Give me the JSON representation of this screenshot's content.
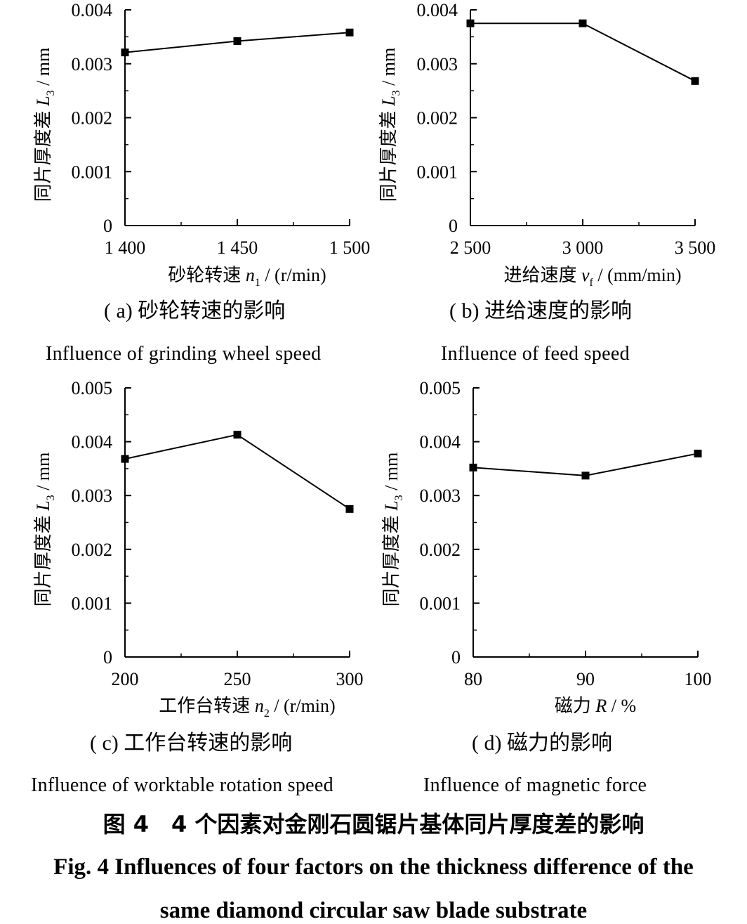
{
  "chart_data": [
    {
      "type": "line",
      "panel": "a",
      "x": [
        1400,
        1450,
        1500
      ],
      "x_tick_labels": [
        "1 400",
        "1 450",
        "1 500"
      ],
      "values": [
        0.00321,
        0.00342,
        0.00358
      ],
      "xlabel": {
        "text": "砂轮转速",
        "var": "n",
        "sub": "1",
        "unit": "/ (r/min)"
      },
      "ylabel": {
        "text": "同片厚度差",
        "var": "L",
        "sub": "3",
        "unit": "/ mm"
      },
      "ylim": [
        0,
        0.004
      ],
      "y_ticks": [
        "0",
        "0.001",
        "0.002",
        "0.003",
        "0.004"
      ],
      "caption_cn": "( a) 砂轮转速的影响",
      "caption_en": "Influence of grinding wheel speed"
    },
    {
      "type": "line",
      "panel": "b",
      "x": [
        2500,
        3000,
        3500
      ],
      "x_tick_labels": [
        "2 500",
        "3 000",
        "3 500"
      ],
      "values": [
        0.00375,
        0.00375,
        0.00268
      ],
      "xlabel": {
        "text": "进给速度",
        "var": "v",
        "sub": "f",
        "unit": "/ (mm/min)"
      },
      "ylabel": {
        "text": "同片厚度差",
        "var": "L",
        "sub": "3",
        "unit": "/ mm"
      },
      "ylim": [
        0,
        0.004
      ],
      "y_ticks": [
        "0",
        "0.001",
        "0.002",
        "0.003",
        "0.004"
      ],
      "caption_cn": "( b) 进给速度的影响",
      "caption_en": "Influence of feed speed"
    },
    {
      "type": "line",
      "panel": "c",
      "x": [
        200,
        250,
        300
      ],
      "x_tick_labels": [
        "200",
        "250",
        "300"
      ],
      "values": [
        0.00368,
        0.00413,
        0.00275
      ],
      "xlabel": {
        "text": "工作台转速",
        "var": "n",
        "sub": "2",
        "unit": "/ (r/min)"
      },
      "ylabel": {
        "text": "同片厚度差",
        "var": "L",
        "sub": "3",
        "unit": "/ mm"
      },
      "ylim": [
        0,
        0.005
      ],
      "y_ticks": [
        "0",
        "0.001",
        "0.002",
        "0.003",
        "0.004",
        "0.005"
      ],
      "caption_cn": "( c) 工作台转速的影响",
      "caption_en": "Influence of worktable rotation speed"
    },
    {
      "type": "line",
      "panel": "d",
      "x": [
        80,
        90,
        100
      ],
      "x_tick_labels": [
        "80",
        "90",
        "100"
      ],
      "values": [
        0.00352,
        0.00337,
        0.00378
      ],
      "xlabel": {
        "text": "磁力",
        "var": "R",
        "sub": "",
        "unit": "/ %"
      },
      "ylabel": {
        "text": "同片厚度差",
        "var": "L",
        "sub": "3",
        "unit": "/ mm"
      },
      "ylim": [
        0,
        0.005
      ],
      "y_ticks": [
        "0",
        "0.001",
        "0.002",
        "0.003",
        "0.004",
        "0.005"
      ],
      "caption_cn": "( d) 磁力的影响",
      "caption_en": "Influence of magnetic force"
    }
  ],
  "figure": {
    "title_cn": "图 4　4 个因素对金刚石圆锯片基体同片厚度差的影响",
    "title_en_line1": "Fig. 4 Influences of four factors on the thickness difference of the",
    "title_en_line2": "same diamond circular saw blade substrate"
  }
}
